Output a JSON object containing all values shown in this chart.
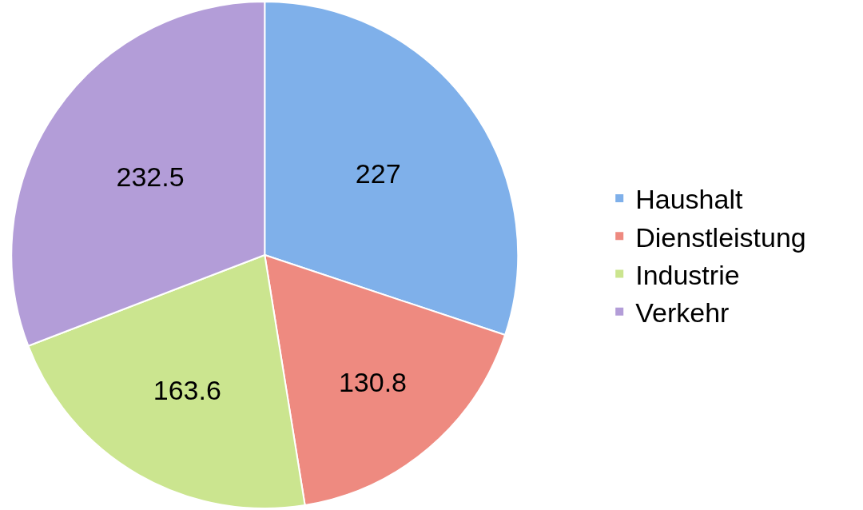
{
  "chart_data": {
    "type": "pie",
    "categories": [
      "Haushalt",
      "Dienstleistung",
      "Industrie",
      "Verkehr"
    ],
    "values": [
      227,
      130.8,
      163.6,
      232.5
    ],
    "colors": [
      "#7fb0ea",
      "#ee8a80",
      "#cbe58f",
      "#b39dd8"
    ],
    "data_labels": true,
    "legend": "right"
  }
}
